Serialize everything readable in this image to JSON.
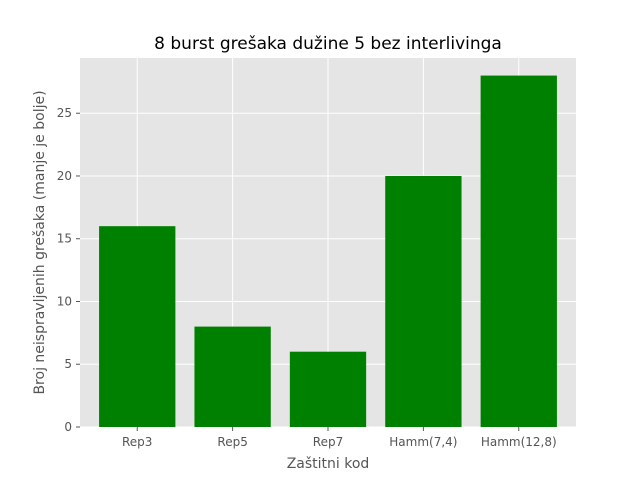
{
  "chart_data": {
    "type": "bar",
    "title": "8 burst grešaka dužine 5 bez interlivinga",
    "xlabel": "Zaštitni kod",
    "ylabel": "Broj neispravljenih grešaka (manje je bolje)",
    "categories": [
      "Rep3",
      "Rep5",
      "Rep7",
      "Hamm(7,4)",
      "Hamm(12,8)"
    ],
    "values": [
      16,
      8,
      6,
      20,
      28
    ],
    "ylim": [
      0,
      29.4
    ],
    "yticks": [
      0,
      5,
      10,
      15,
      20,
      25
    ],
    "bar_color": "#008000",
    "background_color": "#E5E5E5",
    "grid_color": "#FFFFFF",
    "grid": true,
    "legend": false
  }
}
